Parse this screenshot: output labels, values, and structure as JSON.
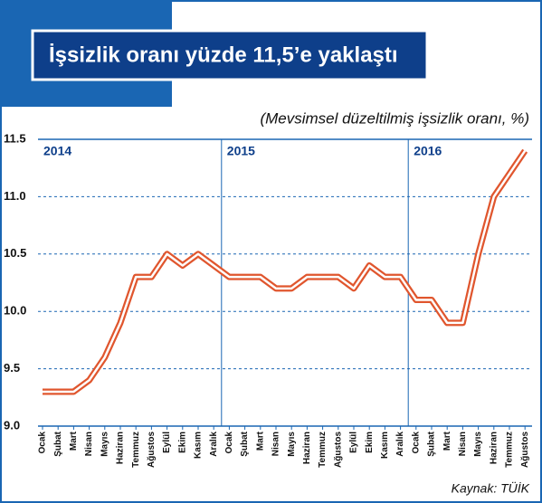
{
  "chart_data": {
    "type": "line",
    "title": "İşsizlik oranı yüzde 11,5’e yaklaştı",
    "subtitle": "(Mevsimsel düzeltilmiş işsizlik oranı, %)",
    "source": "Kaynak: TÜİK",
    "years": [
      "2014",
      "2015",
      "2016"
    ],
    "categories": [
      "Ocak",
      "Şubat",
      "Mart",
      "Nisan",
      "Mayıs",
      "Haziran",
      "Temmuz",
      "Ağustos",
      "Eylül",
      "Ekim",
      "Kasım",
      "Aralık",
      "Ocak",
      "Şubat",
      "Mart",
      "Nisan",
      "Mayıs",
      "Haziran",
      "Temmuz",
      "Ağustos",
      "Eylül",
      "Ekim",
      "Kasım",
      "Aralık",
      "Ocak",
      "Şubat",
      "Mart",
      "Nisan",
      "Mayıs",
      "Haziran",
      "Temmuz",
      "Ağustos"
    ],
    "values": [
      9.3,
      9.3,
      9.3,
      9.4,
      9.6,
      9.9,
      10.3,
      10.3,
      10.5,
      10.4,
      10.5,
      10.4,
      10.3,
      10.3,
      10.3,
      10.2,
      10.2,
      10.3,
      10.3,
      10.3,
      10.2,
      10.4,
      10.3,
      10.3,
      10.1,
      10.1,
      9.9,
      9.9,
      10.5,
      11.0,
      11.2,
      11.4
    ],
    "color": "#e0562e",
    "ylim": [
      9.0,
      11.5
    ],
    "yticks": [
      {
        "value": 9.0,
        "label": "9.0"
      },
      9.5,
      {
        "value": 10.0,
        "label": "10.0"
      },
      10.5,
      {
        "value": 11.0,
        "label": "11.0"
      },
      11.5
    ],
    "grid": true
  }
}
